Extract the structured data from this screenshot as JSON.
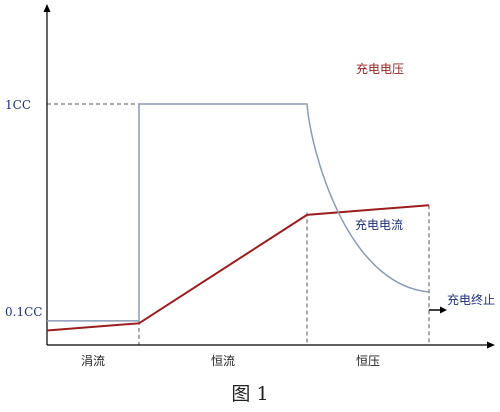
{
  "caption": "图 1",
  "chart_data": {
    "type": "line",
    "title": "",
    "xlabel": "",
    "ylabel": "",
    "y_tick_labels": [
      "0.1CC",
      "1CC"
    ],
    "phases": [
      "涓流",
      "恒流",
      "恒压"
    ],
    "series": [
      {
        "name": "充电电压",
        "color": "#9b1d1d",
        "x": [
          0,
          1,
          2,
          3
        ],
        "values": [
          0.06,
          0.09,
          0.54,
          0.58
        ]
      },
      {
        "name": "充电电流",
        "color": "#8a9bb5",
        "x": [
          0,
          1,
          1,
          2,
          2.1,
          2.25,
          2.45,
          2.65,
          2.85,
          3
        ],
        "values": [
          0.1,
          0.1,
          1.0,
          1.0,
          0.78,
          0.6,
          0.44,
          0.33,
          0.26,
          0.22
        ]
      }
    ],
    "annotations": {
      "end_label": "充电终止"
    },
    "colors": {
      "axis": "#000000",
      "guide": "#555555",
      "label": "#1f2f7a"
    }
  }
}
